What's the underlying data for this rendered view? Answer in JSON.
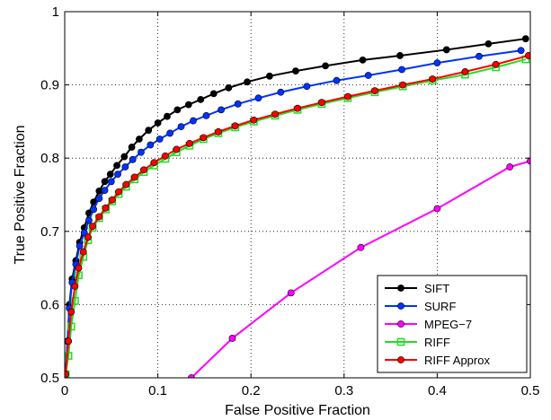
{
  "chart_data": {
    "type": "line",
    "xlabel": "False Positive Fraction",
    "ylabel": "True Positive Fraction",
    "xlim": [
      0,
      0.5
    ],
    "ylim": [
      0.5,
      1
    ],
    "xticks": [
      "0",
      "0.1",
      "0.2",
      "0.3",
      "0.4",
      "0.5"
    ],
    "yticks": [
      "0.5",
      "0.6",
      "0.7",
      "0.8",
      "0.9",
      "1"
    ],
    "grid": true,
    "legend_position": "bottom-right",
    "series": [
      {
        "name": "SIFT",
        "color": "#000000",
        "marker": "circle",
        "x": [
          0.001,
          0.003,
          0.005,
          0.008,
          0.012,
          0.016,
          0.021,
          0.026,
          0.031,
          0.037,
          0.043,
          0.049,
          0.056,
          0.064,
          0.072,
          0.08,
          0.09,
          0.1,
          0.11,
          0.121,
          0.133,
          0.146,
          0.16,
          0.176,
          0.196,
          0.22,
          0.248,
          0.28,
          0.32,
          0.36,
          0.41,
          0.455,
          0.495
        ],
        "y": [
          0.505,
          0.55,
          0.6,
          0.635,
          0.66,
          0.685,
          0.705,
          0.725,
          0.74,
          0.755,
          0.768,
          0.778,
          0.79,
          0.802,
          0.815,
          0.826,
          0.838,
          0.848,
          0.857,
          0.866,
          0.873,
          0.88,
          0.888,
          0.896,
          0.904,
          0.912,
          0.919,
          0.926,
          0.934,
          0.94,
          0.948,
          0.956,
          0.963
        ]
      },
      {
        "name": "SURF",
        "color": "#0033ff",
        "marker": "circle",
        "x": [
          0.001,
          0.003,
          0.005,
          0.008,
          0.012,
          0.016,
          0.021,
          0.026,
          0.031,
          0.037,
          0.043,
          0.05,
          0.057,
          0.065,
          0.073,
          0.082,
          0.092,
          0.102,
          0.113,
          0.125,
          0.138,
          0.152,
          0.168,
          0.186,
          0.208,
          0.232,
          0.26,
          0.292,
          0.326,
          0.362,
          0.4,
          0.445,
          0.49
        ],
        "y": [
          0.505,
          0.55,
          0.595,
          0.63,
          0.655,
          0.68,
          0.698,
          0.715,
          0.73,
          0.745,
          0.756,
          0.768,
          0.778,
          0.788,
          0.798,
          0.808,
          0.818,
          0.826,
          0.834,
          0.843,
          0.851,
          0.858,
          0.866,
          0.874,
          0.882,
          0.89,
          0.898,
          0.906,
          0.913,
          0.921,
          0.93,
          0.939,
          0.947
        ]
      },
      {
        "name": "MPEG−7",
        "color": "#ff00ff",
        "marker": "circle",
        "x": [
          0.136,
          0.18,
          0.243,
          0.318,
          0.4,
          0.478,
          0.5
        ],
        "y": [
          0.5,
          0.554,
          0.616,
          0.678,
          0.731,
          0.788,
          0.796
        ]
      },
      {
        "name": "RIFF",
        "color": "#22dd22",
        "marker": "square",
        "x": [
          0.001,
          0.004,
          0.007,
          0.011,
          0.015,
          0.02,
          0.025,
          0.03,
          0.037,
          0.044,
          0.051,
          0.058,
          0.066,
          0.075,
          0.085,
          0.096,
          0.108,
          0.12,
          0.134,
          0.149,
          0.165,
          0.183,
          0.203,
          0.226,
          0.25,
          0.276,
          0.304,
          0.333,
          0.363,
          0.395,
          0.43,
          0.463,
          0.495
        ],
        "y": [
          0.505,
          0.53,
          0.57,
          0.605,
          0.64,
          0.665,
          0.688,
          0.705,
          0.718,
          0.73,
          0.741,
          0.751,
          0.761,
          0.771,
          0.781,
          0.79,
          0.799,
          0.808,
          0.817,
          0.826,
          0.834,
          0.842,
          0.85,
          0.858,
          0.866,
          0.874,
          0.882,
          0.89,
          0.898,
          0.906,
          0.914,
          0.924,
          0.935
        ]
      },
      {
        "name": "RIFF Approx",
        "color": "#ff0000",
        "marker": "circle",
        "x": [
          0.001,
          0.004,
          0.007,
          0.011,
          0.015,
          0.02,
          0.025,
          0.03,
          0.037,
          0.044,
          0.051,
          0.058,
          0.066,
          0.075,
          0.085,
          0.096,
          0.108,
          0.12,
          0.134,
          0.149,
          0.165,
          0.183,
          0.203,
          0.226,
          0.25,
          0.276,
          0.304,
          0.333,
          0.363,
          0.395,
          0.43,
          0.463,
          0.498
        ],
        "y": [
          0.505,
          0.55,
          0.59,
          0.625,
          0.65,
          0.672,
          0.692,
          0.707,
          0.72,
          0.732,
          0.743,
          0.754,
          0.764,
          0.774,
          0.784,
          0.794,
          0.803,
          0.812,
          0.82,
          0.828,
          0.836,
          0.844,
          0.852,
          0.86,
          0.868,
          0.876,
          0.884,
          0.892,
          0.9,
          0.908,
          0.918,
          0.928,
          0.94
        ]
      }
    ]
  }
}
